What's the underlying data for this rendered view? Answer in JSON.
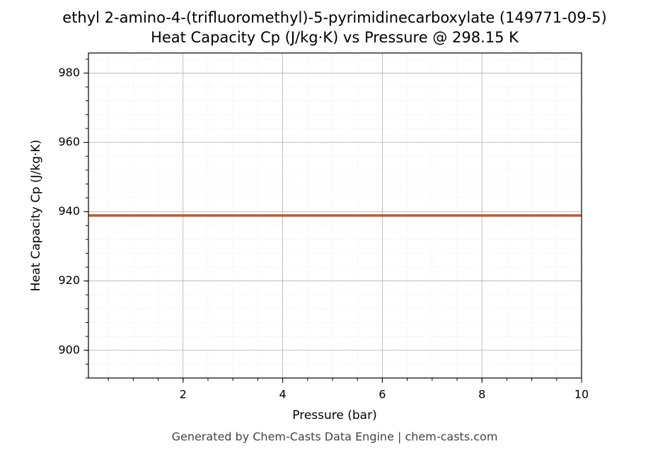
{
  "chart_data": {
    "type": "line",
    "title": "ethyl 2-amino-4-(trifluoromethyl)-5-pyrimidinecarboxylate (149771-09-5)",
    "subtitle": "Heat Capacity Cp (J/kg·K) vs Pressure @ 298.15 K",
    "x_label": "Pressure (bar)",
    "y_label": "Heat Capacity Cp (J/kg·K)",
    "footer": "Generated by Chem-Casts Data Engine | chem-casts.com",
    "x": [
      0.1,
      10
    ],
    "series": [
      {
        "values": [
          938.9,
          938.9
        ],
        "color": "#cc5428"
      }
    ],
    "xlim": [
      0.1,
      10
    ],
    "xticks": [
      2,
      4,
      6,
      8,
      10
    ],
    "ylim": [
      892,
      985.8
    ],
    "yticks": [
      900,
      920,
      940,
      960,
      980
    ],
    "grid": true
  }
}
